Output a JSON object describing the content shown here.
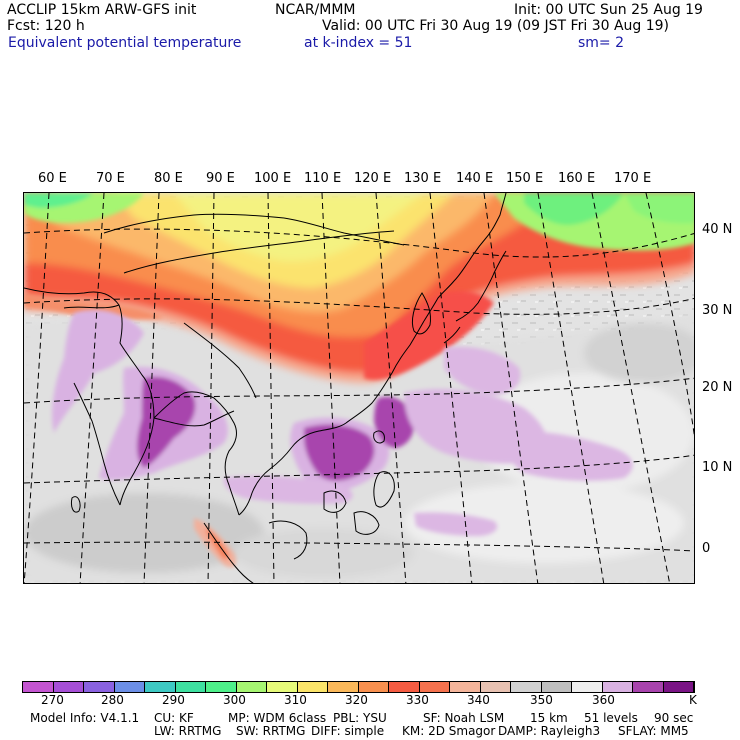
{
  "header": {
    "model": "ACCLIP 15km ARW-GFS init",
    "center": "NCAR/MMM",
    "init": "Init: 00 UTC Sun 25 Aug 19",
    "fcst": "Fcst:  120 h",
    "valid": "Valid: 00 UTC Fri 30 Aug 19 (09 JST Fri 30 Aug 19)",
    "field": "Equivalent potential temperature",
    "level": "at k-index =  51",
    "smooth": "sm= 2"
  },
  "map": {
    "lon_labels": [
      "60 E",
      "70 E",
      "80 E",
      "90 E",
      "100 E",
      "110 E",
      "120 E",
      "130 E",
      "140 E",
      "150 E",
      "160 E",
      "170 E"
    ],
    "lat_labels": [
      "40 N",
      "30 N",
      "20 N",
      "10 N",
      "0"
    ],
    "lat_labels_values": [
      40,
      30,
      20,
      10,
      0
    ]
  },
  "colorbar": {
    "colors": [
      "#c455d1",
      "#a64fd6",
      "#8a62e0",
      "#6c8fe6",
      "#3ec9c3",
      "#3ee0a0",
      "#4ef08a",
      "#a6f572",
      "#e6fa7a",
      "#fbe46a",
      "#fab85a",
      "#f8904f",
      "#f55c42",
      "#f5724e",
      "#f4b59b",
      "#e8c2b2",
      "#d2d2d2",
      "#bfbfbf",
      "#eeeeee",
      "#d9b2e2",
      "#a844ad",
      "#7a1485"
    ],
    "ticks": [
      "270",
      "280",
      "290",
      "300",
      "310",
      "320",
      "330",
      "340",
      "350",
      "360"
    ],
    "ticks_values": [
      270,
      280,
      290,
      300,
      310,
      320,
      330,
      340,
      350,
      360
    ],
    "unit": "K"
  },
  "footer": {
    "line1": [
      "Model Info: V4.1.1",
      "CU: KF",
      "MP: WDM 6class",
      "PBL: YSU",
      "SF: Noah LSM",
      "15 km",
      "51 levels",
      "90 sec"
    ],
    "line2": [
      "LW: RRTMG",
      "SW: RRTMG",
      "DIFF: simple",
      "KM: 2D Smagor",
      "DAMP: Rayleigh3",
      "SFLAY: MM5"
    ]
  }
}
